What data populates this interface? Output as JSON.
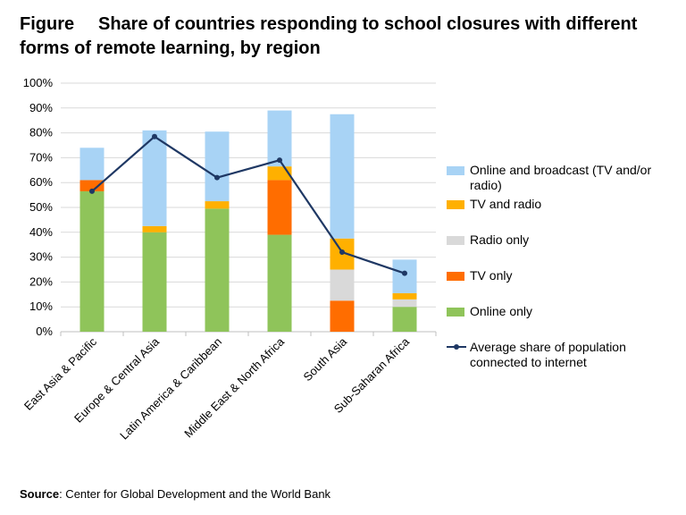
{
  "header": {
    "figure_label": "Figure",
    "title_line1": "Share of countries responding to school closures with different",
    "title_line2": "forms of remote learning, by region"
  },
  "source": {
    "label": "Source",
    "text": ": Center for Global Development and the World Bank"
  },
  "colors": {
    "online_only": "#8fc45a",
    "tv_only": "#ff6d00",
    "radio_only": "#d9d9d9",
    "tv_and_radio": "#ffb000",
    "online_and_broadcast": "#a8d3f5",
    "internet_line": "#1f3864",
    "grid": "#d9d9d9"
  },
  "chart_data": {
    "type": "bar",
    "stacked": true,
    "categories": [
      "East Asia & Pacific",
      "Europe & Central Asia",
      "Latin America & Caribbean",
      "Middle East & North Africa",
      "South Asia",
      "Sub-Saharan Africa"
    ],
    "y_ticks": [
      "0%",
      "10%",
      "20%",
      "30%",
      "40%",
      "50%",
      "60%",
      "70%",
      "80%",
      "90%",
      "100%"
    ],
    "ylim": [
      0,
      100
    ],
    "grid": true,
    "legend_position": "right",
    "series": [
      {
        "name": "Online only",
        "color_key": "online_only",
        "values": [
          56.5,
          40,
          49.5,
          39,
          0,
          10
        ]
      },
      {
        "name": "TV only",
        "color_key": "tv_only",
        "values": [
          4.5,
          0,
          0,
          22,
          12.5,
          0
        ]
      },
      {
        "name": "Radio only",
        "color_key": "radio_only",
        "values": [
          0,
          0,
          0,
          0,
          12.5,
          3
        ]
      },
      {
        "name": "TV and radio",
        "color_key": "tv_and_radio",
        "values": [
          0,
          2.5,
          3,
          5.5,
          12.5,
          2.5
        ]
      },
      {
        "name": "Online and broadcast (TV and/or radio)",
        "color_key": "online_and_broadcast",
        "values": [
          13,
          38.5,
          28,
          22.5,
          50,
          13.5
        ]
      }
    ],
    "line": {
      "name": "Average share of population connected to internet",
      "values": [
        56.5,
        78.5,
        62,
        69,
        32,
        23.5
      ]
    },
    "legend_order": [
      "Online and broadcast (TV and/or radio)",
      "TV and radio",
      "Radio only",
      "TV only",
      "Online only",
      "Average share of population connected to internet"
    ]
  }
}
